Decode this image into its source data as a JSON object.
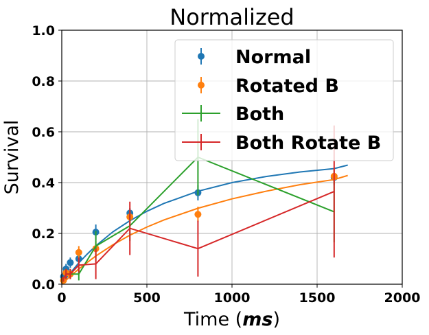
{
  "chart_data": {
    "type": "line",
    "title": "Normalized",
    "xlabel_prefix": "Time (",
    "xlabel_unit": "ms",
    "xlabel_suffix": ")",
    "ylabel": "Survival",
    "xlim": [
      0,
      2000
    ],
    "ylim": [
      0,
      1.0
    ],
    "grid": true,
    "legend_position": "upper-right",
    "xticks": [
      0,
      500,
      1000,
      1500,
      2000
    ],
    "xtick_labels": [
      "0",
      "500",
      "1000",
      "1500",
      "2000"
    ],
    "yticks": [
      0,
      0.2,
      0.4,
      0.6,
      0.8,
      1.0
    ],
    "ytick_labels": [
      "0.0",
      "0.2",
      "0.4",
      "0.6",
      "0.8",
      "1.0"
    ],
    "series": [
      {
        "name": "Normal",
        "kind": "errorbar-points",
        "color": "#1f77b4",
        "x": [
          10,
          25,
          50,
          100,
          200,
          400,
          800,
          1600
        ],
        "y": [
          0.03,
          0.06,
          0.085,
          0.1,
          0.205,
          0.28,
          0.36,
          0.42
        ],
        "yerr": [
          0.015,
          0.02,
          0.02,
          0.02,
          0.03,
          0.02,
          0.03,
          0.03
        ],
        "fit": {
          "x": [
            0,
            25,
            50,
            100,
            150,
            200,
            300,
            400,
            500,
            600,
            800,
            1000,
            1200,
            1400,
            1600,
            1680
          ],
          "y": [
            0.0,
            0.023,
            0.044,
            0.084,
            0.119,
            0.151,
            0.206,
            0.25,
            0.287,
            0.318,
            0.366,
            0.4,
            0.424,
            0.442,
            0.455,
            0.469
          ]
        }
      },
      {
        "name": "Rotated B",
        "kind": "errorbar-points",
        "color": "#ff7f0e",
        "x": [
          10,
          25,
          50,
          100,
          200,
          400,
          800,
          1600
        ],
        "y": [
          0.015,
          0.045,
          0.04,
          0.125,
          0.14,
          0.265,
          0.275,
          0.425
        ],
        "yerr": [
          0.01,
          0.015,
          0.015,
          0.025,
          0.03,
          0.02,
          0.03,
          0.03
        ],
        "fit": {
          "x": [
            0,
            25,
            50,
            100,
            150,
            200,
            300,
            400,
            500,
            600,
            800,
            1000,
            1200,
            1400,
            1600,
            1680
          ],
          "y": [
            0.0,
            0.016,
            0.031,
            0.06,
            0.086,
            0.111,
            0.155,
            0.193,
            0.225,
            0.253,
            0.299,
            0.336,
            0.366,
            0.392,
            0.412,
            0.428
          ]
        }
      },
      {
        "name": "Both",
        "kind": "errorbar-line",
        "color": "#2ca02c",
        "x": [
          10,
          25,
          50,
          100,
          200,
          400,
          800,
          1600
        ],
        "y": [
          0.02,
          0.04,
          0.04,
          0.04,
          0.15,
          0.23,
          0.5,
          0.285
        ],
        "yerr": [
          0.01,
          0.02,
          0.02,
          0.025,
          0.06,
          0.06,
          0.15,
          0.12
        ]
      },
      {
        "name": "Both Rotate B",
        "kind": "errorbar-line",
        "color": "#d62728",
        "x": [
          10,
          25,
          50,
          100,
          200,
          400,
          800,
          1600
        ],
        "y": [
          0.02,
          0.04,
          0.04,
          0.075,
          0.08,
          0.22,
          0.14,
          0.365
        ],
        "yerr": [
          0.01,
          0.02,
          0.02,
          0.03,
          0.06,
          0.105,
          0.11,
          0.26
        ]
      }
    ]
  }
}
